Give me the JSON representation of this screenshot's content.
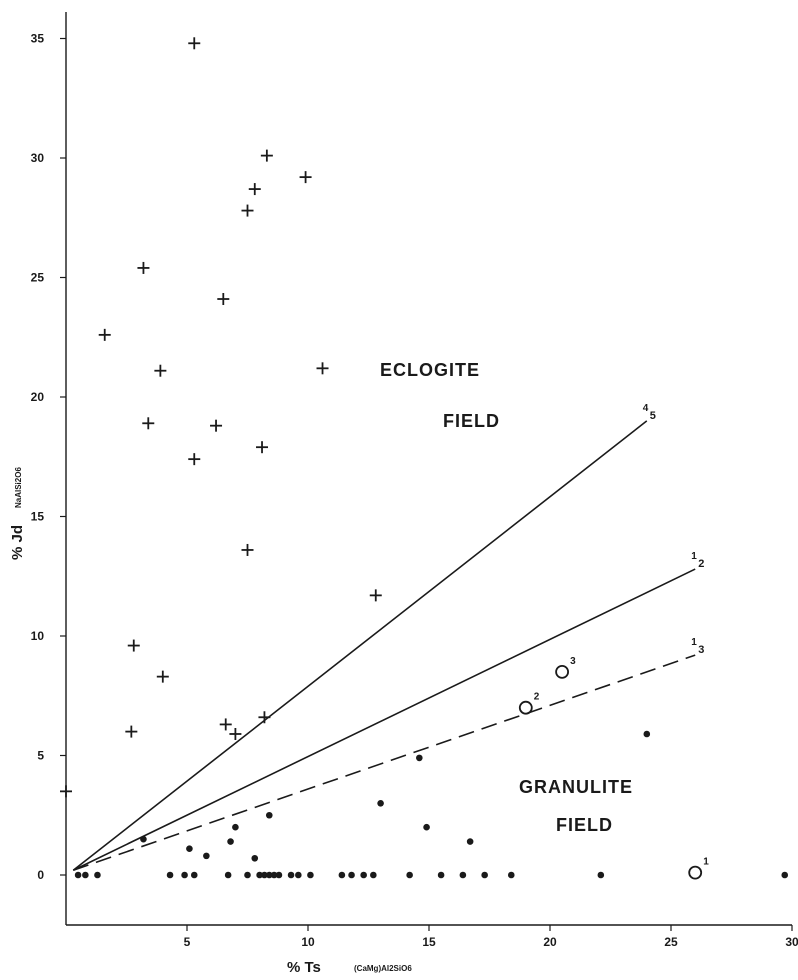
{
  "chart_data": {
    "type": "scatter",
    "xlim": [
      0,
      30
    ],
    "ylim": [
      -2,
      36
    ],
    "x_ticks": [
      5,
      10,
      15,
      20,
      25,
      30
    ],
    "y_ticks": [
      0,
      5,
      10,
      15,
      20,
      25,
      30,
      35
    ],
    "xlabel": {
      "main": "% Ts",
      "formula": "(CaMg)Al2SiO6"
    },
    "ylabel": {
      "main": "% Jd",
      "formula": "NaAlSi2O6"
    },
    "annotations": {
      "eclogite_1": "ECLOGITE",
      "eclogite_2": "FIELD",
      "granulite_1": "GRANULITE",
      "granulite_2": "FIELD"
    },
    "lines": [
      {
        "label": "4",
        "sub": "5",
        "style": "solid",
        "from": [
          0.3,
          0.2
        ],
        "to": [
          24,
          19
        ]
      },
      {
        "label": "1",
        "sub": "2",
        "style": "solid",
        "from": [
          0.3,
          0.2
        ],
        "to": [
          26,
          12.8
        ]
      },
      {
        "label": "1",
        "sub": "3",
        "style": "dashed",
        "from": [
          0.3,
          0.2
        ],
        "to": [
          26,
          9.2
        ]
      }
    ],
    "series": [
      {
        "marker": "cross",
        "values": [
          [
            0,
            3.5
          ],
          [
            2.7,
            6.0
          ],
          [
            2.8,
            9.6
          ],
          [
            4.0,
            8.3
          ],
          [
            1.6,
            22.6
          ],
          [
            3.2,
            25.4
          ],
          [
            3.4,
            18.9
          ],
          [
            3.9,
            21.1
          ],
          [
            5.3,
            34.8
          ],
          [
            5.3,
            17.4
          ],
          [
            6.2,
            18.8
          ],
          [
            6.5,
            24.1
          ],
          [
            6.6,
            6.3
          ],
          [
            7.0,
            5.9
          ],
          [
            7.5,
            27.8
          ],
          [
            7.5,
            13.6
          ],
          [
            7.8,
            28.7
          ],
          [
            8.1,
            17.9
          ],
          [
            8.2,
            6.6
          ],
          [
            8.3,
            30.1
          ],
          [
            9.9,
            29.2
          ],
          [
            10.6,
            21.2
          ],
          [
            12.8,
            11.7
          ]
        ]
      },
      {
        "marker": "dot",
        "values": [
          [
            0.5,
            0
          ],
          [
            0.8,
            0
          ],
          [
            1.3,
            0
          ],
          [
            3.2,
            1.5
          ],
          [
            4.3,
            0
          ],
          [
            4.9,
            0
          ],
          [
            5.1,
            1.1
          ],
          [
            5.3,
            0
          ],
          [
            5.8,
            0.8
          ],
          [
            6.7,
            0
          ],
          [
            6.8,
            1.4
          ],
          [
            7.0,
            2.0
          ],
          [
            7.5,
            0
          ],
          [
            7.8,
            0.7
          ],
          [
            8.0,
            0
          ],
          [
            8.2,
            0
          ],
          [
            8.4,
            2.5
          ],
          [
            8.4,
            0
          ],
          [
            8.6,
            0
          ],
          [
            8.8,
            0
          ],
          [
            9.3,
            0
          ],
          [
            9.6,
            0
          ],
          [
            10.1,
            0
          ],
          [
            11.4,
            0
          ],
          [
            11.8,
            0
          ],
          [
            12.3,
            0
          ],
          [
            12.7,
            0
          ],
          [
            13.0,
            3.0
          ],
          [
            14.2,
            0
          ],
          [
            14.6,
            4.9
          ],
          [
            14.9,
            2.0
          ],
          [
            15.5,
            0
          ],
          [
            16.4,
            0
          ],
          [
            16.7,
            1.4
          ],
          [
            17.3,
            0
          ],
          [
            18.4,
            0
          ],
          [
            22.1,
            0
          ],
          [
            24.0,
            5.9
          ],
          [
            29.7,
            0
          ]
        ]
      },
      {
        "marker": "open-circle",
        "values": [
          {
            "x": 26.0,
            "y": 0.1,
            "label": "1"
          },
          {
            "x": 19.0,
            "y": 7.0,
            "label": "2"
          },
          {
            "x": 20.5,
            "y": 8.5,
            "label": "3"
          }
        ]
      }
    ],
    "grid": false,
    "legend": "none"
  }
}
